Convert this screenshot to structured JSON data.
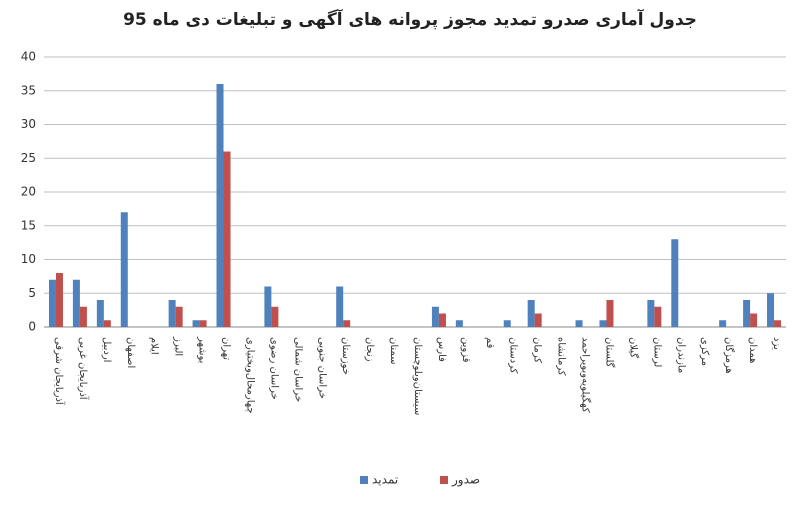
{
  "chart_data": {
    "type": "bar",
    "title": "جدول آماری صدرو تمدید  مجوز پروانه های آگهی و تبلیغات دی ماه 95",
    "categories": [
      "آذربایجان شرقی",
      "آذربایجان غربی",
      "اردبیل",
      "اصفهان",
      "ایلام",
      "البرز",
      "بوشهر",
      "تهران",
      "چهارمحال‌وبختیاری",
      "خراسان رضوی",
      "خراسان شمالی",
      "خراسان جنوبی",
      "خوزستان",
      "زنجان",
      "سمنان",
      "سیستان‌وبلوچستان",
      "فارس",
      "قزوین",
      "قم",
      "کردستان",
      "کرمان",
      "کرمانشاه",
      "کهگیلویه‌وبویراحمد",
      "گلستان",
      "گیلان",
      "لرستان",
      "مازندران",
      "مرکزی",
      "هرمزگان",
      "همدان",
      "یزد"
    ],
    "series": [
      {
        "name": "تمدید",
        "color": "#4f81bd",
        "values": [
          7,
          7,
          4,
          17,
          0,
          4,
          1,
          36,
          0,
          6,
          0,
          0,
          6,
          0,
          0,
          0,
          3,
          1,
          0,
          1,
          4,
          0,
          1,
          1,
          0,
          4,
          13,
          0,
          1,
          4,
          5
        ]
      },
      {
        "name": "صدور",
        "color": "#c0504d",
        "values": [
          8,
          3,
          1,
          0,
          0,
          3,
          1,
          26,
          0,
          3,
          0,
          0,
          1,
          0,
          0,
          0,
          2,
          0,
          0,
          0,
          2,
          0,
          0,
          4,
          0,
          3,
          0,
          0,
          0,
          2,
          1
        ]
      }
    ],
    "ylim": [
      0,
      40
    ],
    "yticks": [
      0,
      5,
      10,
      15,
      20,
      25,
      30,
      35,
      40
    ],
    "grid": true,
    "legend": "bottom"
  }
}
